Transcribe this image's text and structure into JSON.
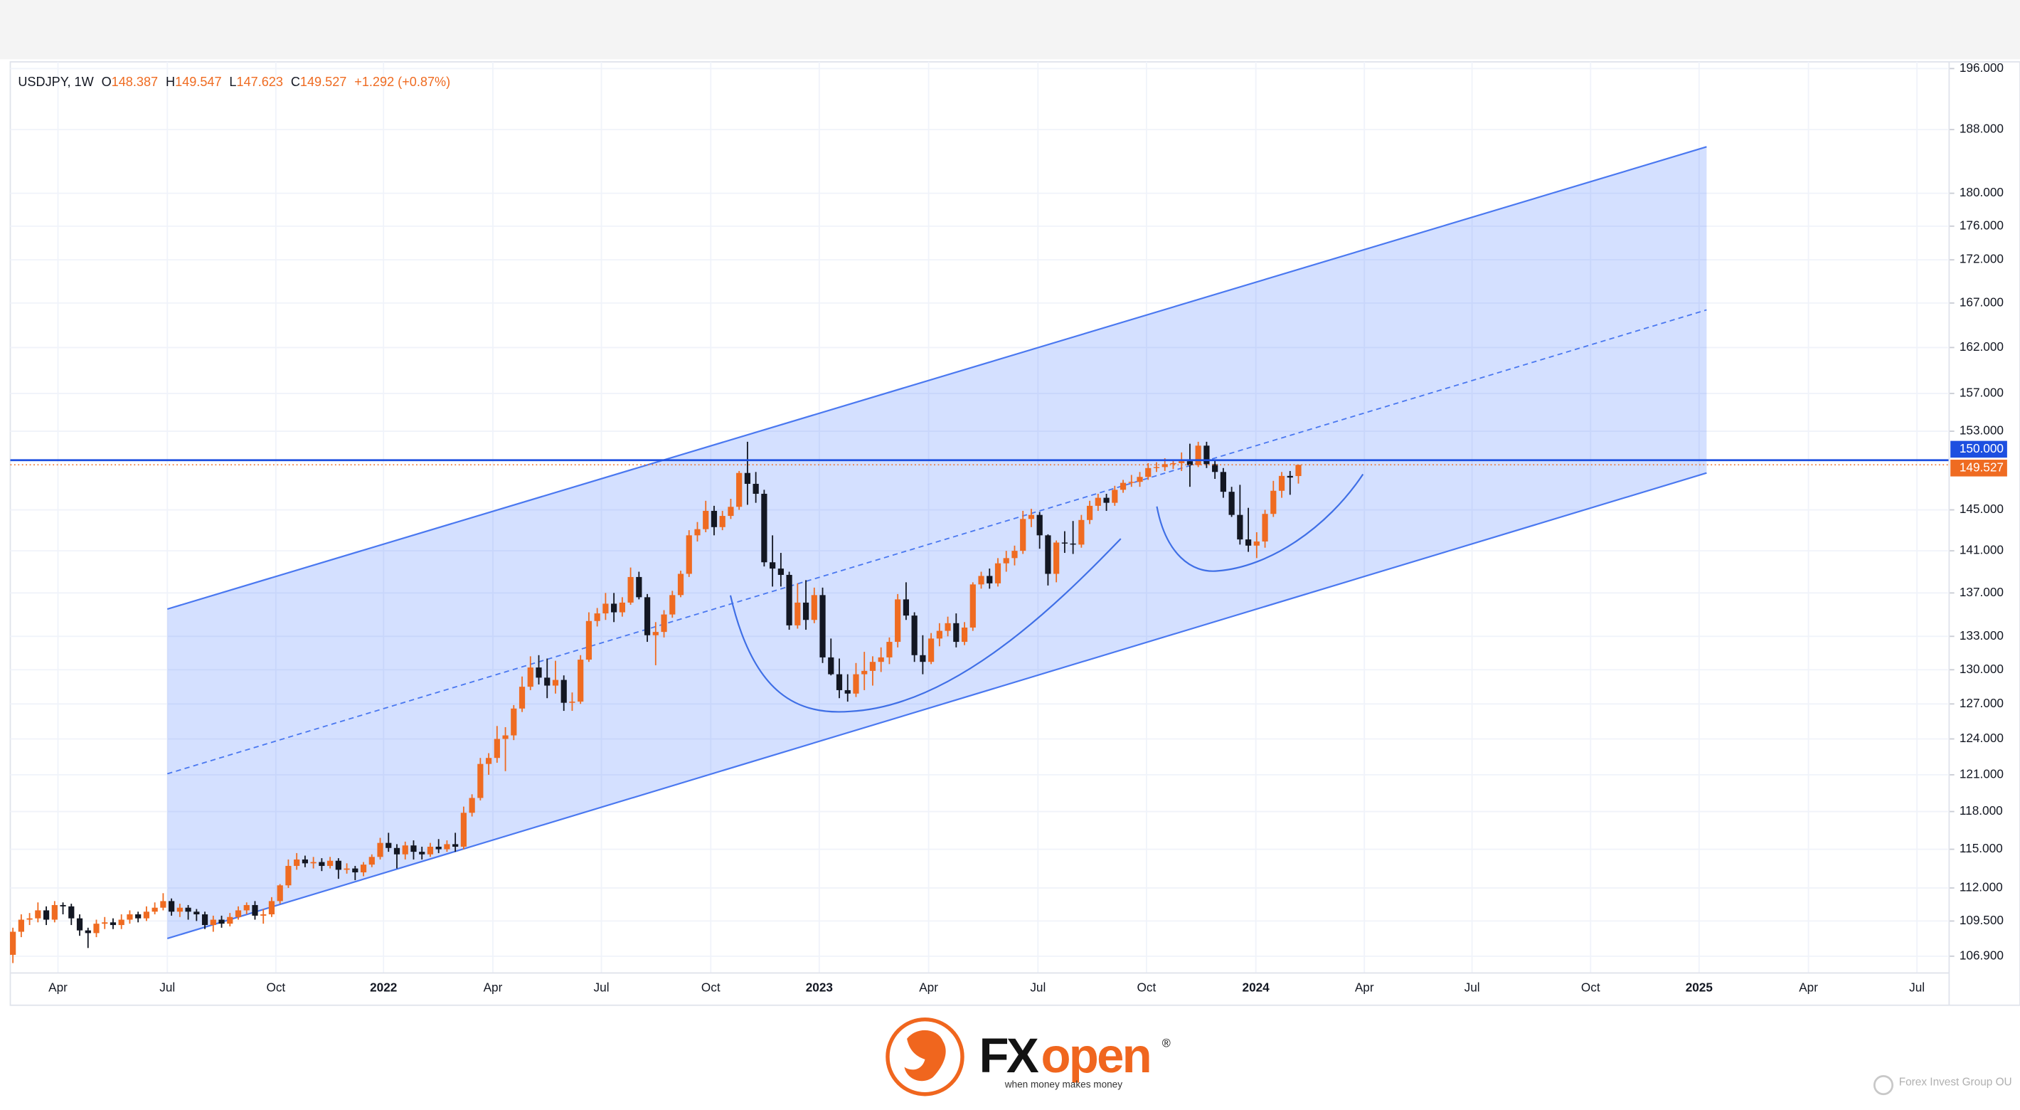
{
  "header": {
    "symbol": "USDJPY, 1W",
    "fields": [
      {
        "key": "O",
        "text": "148.387"
      },
      {
        "key": "H",
        "text": "149.547"
      },
      {
        "key": "L",
        "text": "147.623"
      },
      {
        "key": "C",
        "text": "149.527"
      }
    ],
    "change": "+1.292 (+0.87%)"
  },
  "chart_data": {
    "type": "candlestick",
    "log_scale": true,
    "grid": true,
    "up_color": "#ef6b21",
    "down_color": "#131722",
    "ylim": [
      105.68,
      196.9
    ],
    "yticks": [
      {
        "value": 106.9,
        "label": "106.900"
      },
      {
        "value": 109.5,
        "label": "109.500"
      },
      {
        "value": 112,
        "label": "112.000"
      },
      {
        "value": 115,
        "label": "115.000"
      },
      {
        "value": 118,
        "label": "118.000"
      },
      {
        "value": 121,
        "label": "121.000"
      },
      {
        "value": 124,
        "label": "124.000"
      },
      {
        "value": 127,
        "label": "127.000"
      },
      {
        "value": 130,
        "label": "130.000"
      },
      {
        "value": 133,
        "label": "133.000"
      },
      {
        "value": 137,
        "label": "137.000"
      },
      {
        "value": 141,
        "label": "141.000"
      },
      {
        "value": 145,
        "label": "145.000"
      },
      {
        "value": 153,
        "label": "153.000"
      },
      {
        "value": 157,
        "label": "157.000"
      },
      {
        "value": 162,
        "label": "162.000"
      },
      {
        "value": 167,
        "label": "167.000"
      },
      {
        "value": 172,
        "label": "172.000"
      },
      {
        "value": 176,
        "label": "176.000"
      },
      {
        "value": 180,
        "label": "180.000"
      },
      {
        "value": 188,
        "label": "188.000"
      },
      {
        "value": 196,
        "label": "196.000"
      }
    ],
    "xlim": [
      -0.31,
      231.8
    ],
    "xticks": [
      {
        "value": 5.4,
        "label": "Apr"
      },
      {
        "value": 18.5,
        "label": "Jul"
      },
      {
        "value": 31.5,
        "label": "Oct"
      },
      {
        "value": 44.4,
        "label": "2022"
      },
      {
        "value": 57.5,
        "label": "Apr"
      },
      {
        "value": 70.5,
        "label": "Jul"
      },
      {
        "value": 83.6,
        "label": "Oct"
      },
      {
        "value": 96.6,
        "label": "2023"
      },
      {
        "value": 109.7,
        "label": "Apr"
      },
      {
        "value": 122.8,
        "label": "Jul"
      },
      {
        "value": 135.8,
        "label": "Oct"
      },
      {
        "value": 148.9,
        "label": "2024"
      },
      {
        "value": 161.9,
        "label": "Apr"
      },
      {
        "value": 174.8,
        "label": "Jul"
      },
      {
        "value": 189.0,
        "label": "Oct"
      },
      {
        "value": 202.0,
        "label": "2025"
      },
      {
        "value": 215.1,
        "label": "Apr"
      },
      {
        "value": 228.1,
        "label": "Jul"
      }
    ],
    "hline": {
      "value": 150,
      "label": "150.000",
      "color": "#1d4fe0"
    },
    "last_price": {
      "value": 149.527,
      "label": "149.527",
      "color": "#ef6b21"
    },
    "channel": {
      "x": [
        18.5,
        202.9
      ],
      "upper": [
        135.5,
        185.8
      ],
      "lower": [
        108.2,
        148.7
      ],
      "color": "#4a78f0",
      "fill": "rgba(41,98,255,0.2)"
    },
    "candles": [
      [
        107.0,
        109.0,
        106.4,
        108.7
      ],
      [
        108.7,
        110.0,
        108.3,
        109.6
      ],
      [
        109.6,
        110.1,
        109.2,
        109.7
      ],
      [
        109.7,
        110.9,
        109.4,
        110.3
      ],
      [
        110.3,
        110.6,
        109.2,
        109.6
      ],
      [
        109.6,
        111.0,
        109.4,
        110.7
      ],
      [
        110.7,
        110.9,
        110.0,
        110.6
      ],
      [
        110.6,
        110.8,
        109.2,
        109.7
      ],
      [
        109.7,
        110.0,
        108.4,
        108.8
      ],
      [
        108.8,
        109.0,
        107.5,
        108.6
      ],
      [
        108.6,
        109.6,
        108.3,
        109.3
      ],
      [
        109.3,
        109.8,
        108.9,
        109.4
      ],
      [
        109.4,
        109.7,
        108.9,
        109.2
      ],
      [
        109.2,
        110.0,
        108.9,
        109.6
      ],
      [
        109.6,
        110.3,
        109.3,
        110.0
      ],
      [
        110.0,
        110.2,
        109.4,
        109.7
      ],
      [
        109.7,
        110.6,
        109.5,
        110.2
      ],
      [
        110.2,
        110.9,
        110.0,
        110.5
      ],
      [
        110.5,
        111.6,
        110.3,
        111.0
      ],
      [
        111.0,
        111.2,
        109.9,
        110.2
      ],
      [
        110.2,
        110.8,
        109.8,
        110.5
      ],
      [
        110.5,
        110.7,
        109.6,
        110.2
      ],
      [
        110.2,
        110.4,
        109.5,
        110.0
      ],
      [
        110.0,
        110.2,
        108.9,
        109.2
      ],
      [
        109.2,
        109.9,
        108.7,
        109.6
      ],
      [
        109.6,
        109.9,
        109.0,
        109.3
      ],
      [
        109.3,
        110.1,
        109.1,
        109.8
      ],
      [
        109.8,
        110.6,
        109.6,
        110.3
      ],
      [
        110.3,
        110.9,
        110.0,
        110.7
      ],
      [
        110.7,
        111.0,
        109.6,
        109.9
      ],
      [
        109.9,
        110.4,
        109.3,
        110.0
      ],
      [
        110.0,
        111.3,
        109.8,
        111.0
      ],
      [
        111.0,
        112.3,
        110.8,
        112.2
      ],
      [
        112.2,
        114.2,
        112.0,
        113.7
      ],
      [
        113.7,
        114.7,
        113.4,
        114.2
      ],
      [
        114.2,
        114.5,
        113.6,
        113.9
      ],
      [
        113.9,
        114.4,
        113.5,
        114.0
      ],
      [
        114.0,
        114.3,
        113.3,
        113.7
      ],
      [
        113.7,
        114.4,
        113.5,
        114.1
      ],
      [
        114.1,
        114.3,
        112.7,
        113.4
      ],
      [
        113.4,
        113.9,
        113.1,
        113.5
      ],
      [
        113.5,
        113.7,
        112.6,
        113.2
      ],
      [
        113.2,
        114.0,
        112.9,
        113.8
      ],
      [
        113.8,
        114.6,
        113.6,
        114.4
      ],
      [
        114.4,
        115.9,
        114.2,
        115.5
      ],
      [
        115.5,
        116.3,
        114.8,
        115.1
      ],
      [
        115.1,
        115.4,
        113.5,
        114.6
      ],
      [
        114.6,
        115.6,
        114.2,
        115.3
      ],
      [
        115.3,
        115.7,
        114.2,
        114.8
      ],
      [
        114.8,
        115.2,
        114.2,
        114.6
      ],
      [
        114.6,
        115.5,
        114.4,
        115.2
      ],
      [
        115.2,
        115.8,
        114.7,
        115.0
      ],
      [
        115.0,
        115.7,
        114.8,
        115.4
      ],
      [
        115.4,
        116.3,
        114.8,
        115.2
      ],
      [
        115.2,
        118.4,
        115.0,
        117.9
      ],
      [
        117.9,
        119.4,
        117.6,
        119.1
      ],
      [
        119.1,
        122.4,
        118.9,
        121.9
      ],
      [
        121.9,
        122.8,
        121.0,
        122.4
      ],
      [
        122.4,
        125.1,
        122.0,
        124.0
      ],
      [
        124.0,
        125.0,
        121.3,
        124.3
      ],
      [
        124.3,
        126.9,
        123.9,
        126.6
      ],
      [
        126.6,
        129.4,
        126.3,
        128.5
      ],
      [
        128.5,
        131.2,
        128.2,
        130.2
      ],
      [
        130.2,
        131.3,
        128.7,
        129.3
      ],
      [
        129.3,
        131.0,
        127.5,
        128.6
      ],
      [
        128.6,
        130.8,
        127.9,
        129.1
      ],
      [
        129.1,
        129.5,
        126.4,
        127.1
      ],
      [
        127.1,
        128.0,
        126.4,
        127.2
      ],
      [
        127.2,
        131.3,
        127.0,
        130.9
      ],
      [
        130.9,
        135.2,
        130.7,
        134.4
      ],
      [
        134.4,
        135.6,
        133.9,
        135.1
      ],
      [
        135.1,
        137.0,
        134.5,
        136.0
      ],
      [
        136.0,
        137.0,
        134.3,
        135.2
      ],
      [
        135.2,
        136.6,
        134.8,
        136.1
      ],
      [
        136.1,
        139.4,
        135.9,
        138.5
      ],
      [
        138.5,
        139.0,
        136.4,
        136.6
      ],
      [
        136.6,
        136.9,
        132.5,
        133.1
      ],
      [
        133.1,
        134.3,
        130.4,
        133.4
      ],
      [
        133.4,
        135.4,
        132.9,
        135.0
      ],
      [
        135.0,
        137.2,
        134.7,
        136.8
      ],
      [
        136.8,
        139.1,
        136.6,
        138.8
      ],
      [
        138.8,
        143.0,
        138.5,
        142.5
      ],
      [
        142.5,
        143.8,
        141.9,
        143.1
      ],
      [
        143.1,
        145.9,
        142.8,
        144.9
      ],
      [
        144.9,
        145.4,
        142.5,
        143.3
      ],
      [
        143.3,
        144.9,
        143.0,
        144.4
      ],
      [
        144.4,
        146.1,
        144.1,
        145.3
      ],
      [
        145.3,
        148.9,
        145.0,
        148.7
      ],
      [
        148.7,
        151.9,
        145.5,
        147.6
      ],
      [
        147.6,
        148.8,
        145.7,
        146.6
      ],
      [
        146.6,
        147.0,
        139.5,
        139.9
      ],
      [
        139.9,
        142.5,
        137.6,
        139.3
      ],
      [
        139.3,
        140.8,
        137.6,
        138.7
      ],
      [
        138.7,
        139.0,
        133.6,
        134.0
      ],
      [
        134.0,
        137.9,
        133.7,
        136.1
      ],
      [
        136.1,
        138.2,
        133.6,
        134.5
      ],
      [
        134.5,
        137.5,
        134.2,
        136.8
      ],
      [
        136.8,
        137.5,
        130.6,
        131.1
      ],
      [
        131.1,
        132.8,
        129.5,
        129.6
      ],
      [
        129.6,
        131.0,
        127.5,
        128.2
      ],
      [
        128.2,
        129.6,
        127.2,
        127.9
      ],
      [
        127.9,
        130.6,
        127.6,
        129.6
      ],
      [
        129.6,
        131.6,
        128.2,
        129.9
      ],
      [
        129.9,
        131.2,
        128.6,
        130.7
      ],
      [
        130.7,
        132.0,
        129.8,
        131.1
      ],
      [
        131.1,
        132.9,
        130.5,
        132.5
      ],
      [
        132.5,
        136.9,
        132.0,
        136.4
      ],
      [
        136.4,
        138.0,
        134.5,
        134.9
      ],
      [
        134.9,
        135.2,
        130.7,
        131.3
      ],
      [
        131.3,
        133.1,
        129.6,
        130.7
      ],
      [
        130.7,
        133.3,
        130.5,
        132.8
      ],
      [
        132.8,
        134.2,
        132.1,
        133.5
      ],
      [
        133.5,
        134.8,
        133.0,
        134.2
      ],
      [
        134.2,
        135.1,
        132.0,
        132.5
      ],
      [
        132.5,
        134.3,
        132.2,
        133.8
      ],
      [
        133.8,
        138.0,
        133.5,
        137.8
      ],
      [
        137.8,
        139.0,
        137.4,
        138.6
      ],
      [
        138.6,
        139.3,
        137.4,
        137.9
      ],
      [
        137.9,
        140.3,
        137.6,
        139.8
      ],
      [
        139.8,
        141.0,
        139.0,
        140.3
      ],
      [
        140.3,
        141.5,
        139.6,
        141.0
      ],
      [
        141.0,
        144.9,
        140.7,
        144.1
      ],
      [
        144.1,
        145.1,
        143.3,
        144.5
      ],
      [
        144.5,
        144.8,
        141.2,
        142.5
      ],
      [
        142.5,
        142.6,
        137.7,
        138.8
      ],
      [
        138.8,
        142.0,
        138.0,
        141.8
      ],
      [
        141.8,
        142.9,
        140.8,
        141.7
      ],
      [
        141.7,
        143.9,
        140.7,
        141.6
      ],
      [
        141.6,
        144.5,
        141.3,
        144.0
      ],
      [
        144.0,
        145.9,
        143.6,
        145.4
      ],
      [
        145.4,
        146.6,
        144.9,
        146.2
      ],
      [
        146.2,
        146.6,
        144.9,
        145.7
      ],
      [
        145.7,
        147.4,
        145.4,
        147.0
      ],
      [
        147.0,
        148.0,
        146.7,
        147.7
      ],
      [
        147.7,
        148.5,
        147.3,
        147.8
      ],
      [
        147.8,
        148.8,
        147.3,
        148.3
      ],
      [
        148.3,
        149.7,
        148.0,
        149.2
      ],
      [
        149.2,
        149.8,
        148.8,
        149.3
      ],
      [
        149.3,
        150.2,
        148.9,
        149.6
      ],
      [
        149.6,
        150.0,
        149.1,
        149.7
      ],
      [
        149.7,
        150.8,
        148.9,
        149.9
      ],
      [
        149.9,
        151.7,
        147.3,
        149.5
      ],
      [
        149.5,
        151.9,
        149.3,
        151.5
      ],
      [
        151.5,
        151.9,
        149.2,
        149.6
      ],
      [
        149.6,
        150.0,
        148.1,
        148.8
      ],
      [
        148.8,
        149.2,
        146.2,
        146.8
      ],
      [
        146.8,
        147.3,
        144.3,
        144.5
      ],
      [
        144.5,
        147.5,
        141.6,
        142.1
      ],
      [
        142.1,
        145.2,
        140.9,
        141.5
      ],
      [
        141.5,
        142.8,
        140.3,
        141.9
      ],
      [
        141.9,
        145.0,
        141.3,
        144.6
      ],
      [
        144.6,
        147.9,
        144.3,
        146.9
      ],
      [
        146.9,
        148.8,
        146.2,
        148.4
      ],
      [
        148.4,
        148.9,
        146.5,
        148.235
      ],
      [
        148.387,
        149.547,
        147.623,
        149.527
      ]
    ]
  },
  "footer": {
    "logo_fx": "FX",
    "logo_open": "open",
    "logo_mark": "®",
    "tagline": "when money makes money",
    "watermark": "Forex Invest Group OU"
  }
}
